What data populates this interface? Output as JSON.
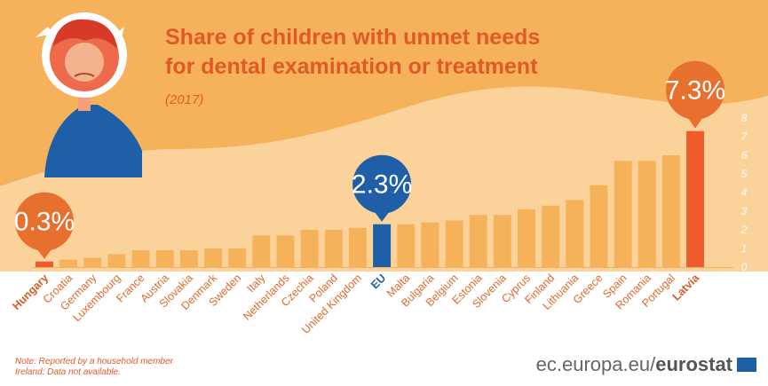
{
  "header": {
    "title_line1": "Share of children with unmet needs",
    "title_line2": "for dental examination or treatment",
    "subtitle": "(2017)"
  },
  "footer": {
    "note_line1": "Note:  Reported by a household member",
    "note_line2": "Ireland: Data not available.",
    "brand_domain": "ec.europa.eu/",
    "brand_name": "eurostat"
  },
  "callouts": {
    "min_label": "0.3%",
    "eu_label": "2.3%",
    "max_label": "7.3%"
  },
  "colors": {
    "background_orange": "#f6b25b",
    "bar": "#f6b25b",
    "bar_highlight": "#ee5b2d",
    "bar_eu": "#1f5fa8",
    "callout_orange": "#e8702f",
    "callout_blue": "#1f5fa8",
    "title": "#e05a28"
  },
  "chart_data": {
    "type": "bar",
    "title": "Share of children with unmet needs for dental examination or treatment",
    "subtitle": "(2017)",
    "xlabel": "",
    "ylabel": "",
    "ylim": [
      0,
      8
    ],
    "yticks": [
      "0",
      "1",
      "2",
      "3",
      "4",
      "5",
      "6",
      "7",
      "8"
    ],
    "grid": false,
    "categories": [
      "Hungary",
      "Croatia",
      "Germany",
      "Luxembourg",
      "France",
      "Austria",
      "Slovakia",
      "Denmark",
      "Sweden",
      "Italy",
      "Netherlands",
      "Czechia",
      "Poland",
      "United Kingdom",
      "EU",
      "Malta",
      "Bulgaria",
      "Belgium",
      "Estonia",
      "Slovenia",
      "Cyprus",
      "Finland",
      "Lithuania",
      "Greece",
      "Spain",
      "Romania",
      "Portugal",
      "Latvia"
    ],
    "values": [
      0.3,
      0.4,
      0.5,
      0.7,
      0.9,
      0.9,
      0.9,
      1.0,
      1.0,
      1.7,
      1.7,
      2.0,
      2.0,
      2.1,
      2.3,
      2.3,
      2.4,
      2.5,
      2.8,
      2.8,
      3.1,
      3.3,
      3.6,
      4.4,
      5.7,
      5.7,
      6.0,
      7.3
    ],
    "highlighted": [
      "Hungary",
      "Latvia"
    ],
    "eu_category": "EU"
  }
}
